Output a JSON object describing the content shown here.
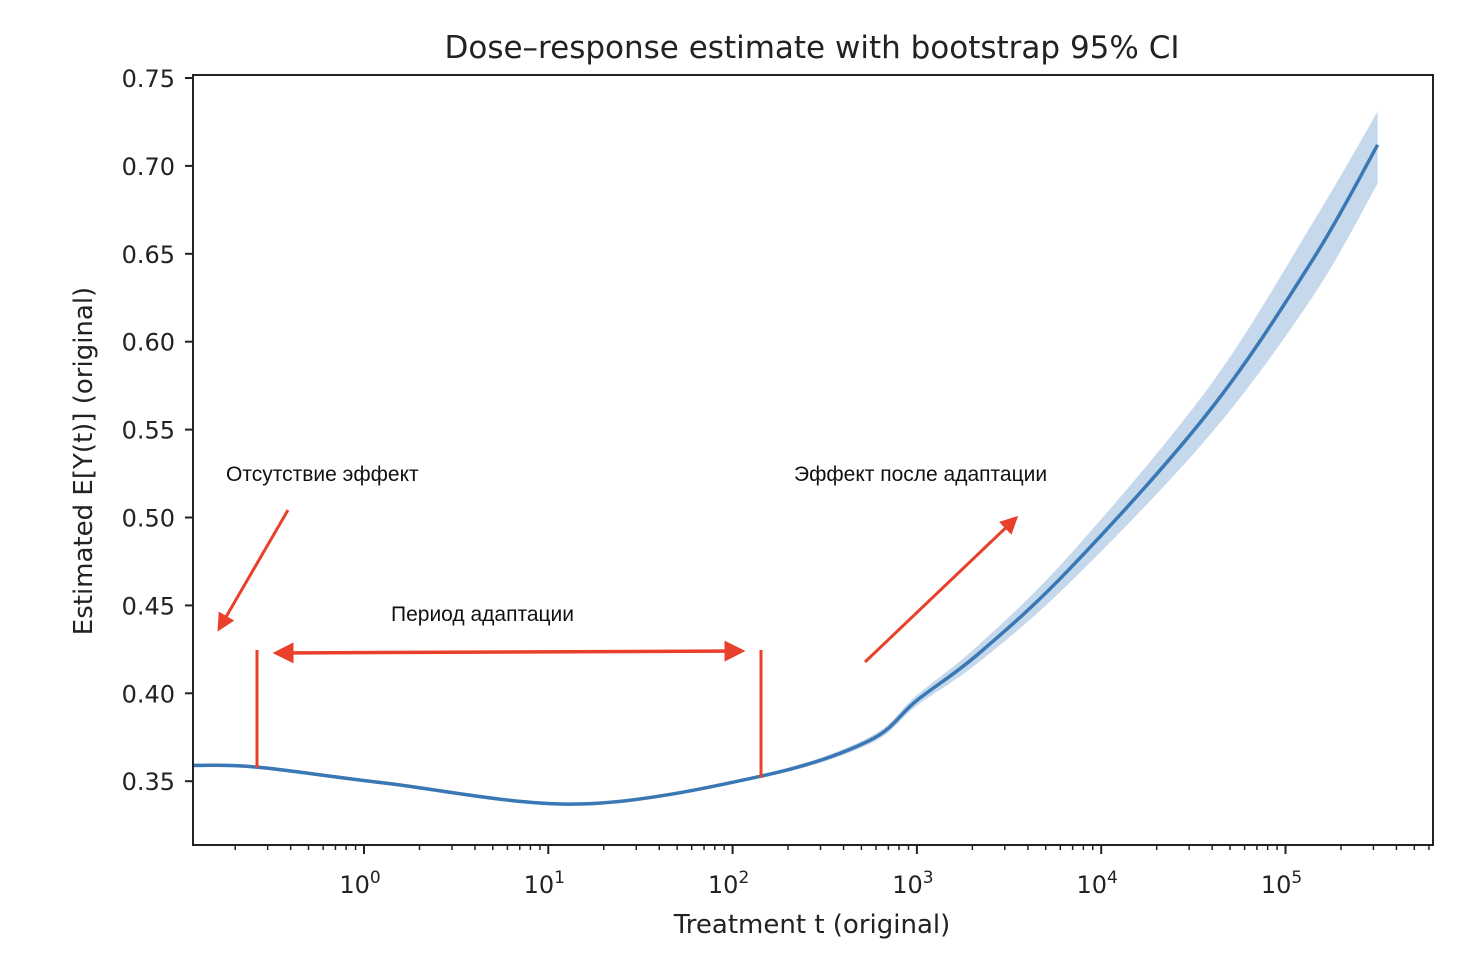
{
  "chart_data": {
    "type": "line",
    "title": "Dose–response estimate with bootstrap 95% CI",
    "xlabel": "Treatment t (original)",
    "ylabel": "Estimated E[Y(t)] (original)",
    "xscale": "log",
    "xlim_log10": [
      -0.93,
      5.8
    ],
    "ylim": [
      0.322,
      0.752
    ],
    "yticks": [
      "0.35",
      "0.40",
      "0.45",
      "0.50",
      "0.55",
      "0.60",
      "0.65",
      "0.70",
      "0.75"
    ],
    "ytick_values": [
      0.35,
      0.4,
      0.45,
      0.5,
      0.55,
      0.6,
      0.65,
      0.7,
      0.75
    ],
    "xticks": [
      {
        "base": "10",
        "exp": "0"
      },
      {
        "base": "10",
        "exp": "1"
      },
      {
        "base": "10",
        "exp": "2"
      },
      {
        "base": "10",
        "exp": "3"
      },
      {
        "base": "10",
        "exp": "4"
      },
      {
        "base": "10",
        "exp": "5"
      }
    ],
    "xtick_log10": [
      0,
      1,
      2,
      3,
      4,
      5
    ],
    "grid": false,
    "series": [
      {
        "name": "estimate",
        "color": "#3a78b5",
        "ci_color": "#c6d9ec",
        "x_log10": [
          -0.93,
          -0.58,
          0.11,
          1.16,
          2.16,
          2.74,
          3.0,
          3.34,
          3.84,
          4.59,
          5.15,
          5.5
        ],
        "y": [
          0.359,
          0.358,
          0.349,
          0.337,
          0.353,
          0.373,
          0.396,
          0.423,
          0.472,
          0.561,
          0.647,
          0.712
        ],
        "ci_lower": [
          0.358,
          0.357,
          0.348,
          0.336,
          0.352,
          0.371,
          0.393,
          0.418,
          0.464,
          0.547,
          0.626,
          0.69
        ],
        "ci_upper": [
          0.36,
          0.359,
          0.35,
          0.338,
          0.354,
          0.375,
          0.399,
          0.428,
          0.48,
          0.575,
          0.668,
          0.731
        ]
      }
    ],
    "annotations": [
      {
        "text": "Отсутствие эффект"
      },
      {
        "text": "Период адаптации"
      },
      {
        "text": "Эффект после адаптации"
      }
    ],
    "annotation_color": "#e8402a"
  }
}
